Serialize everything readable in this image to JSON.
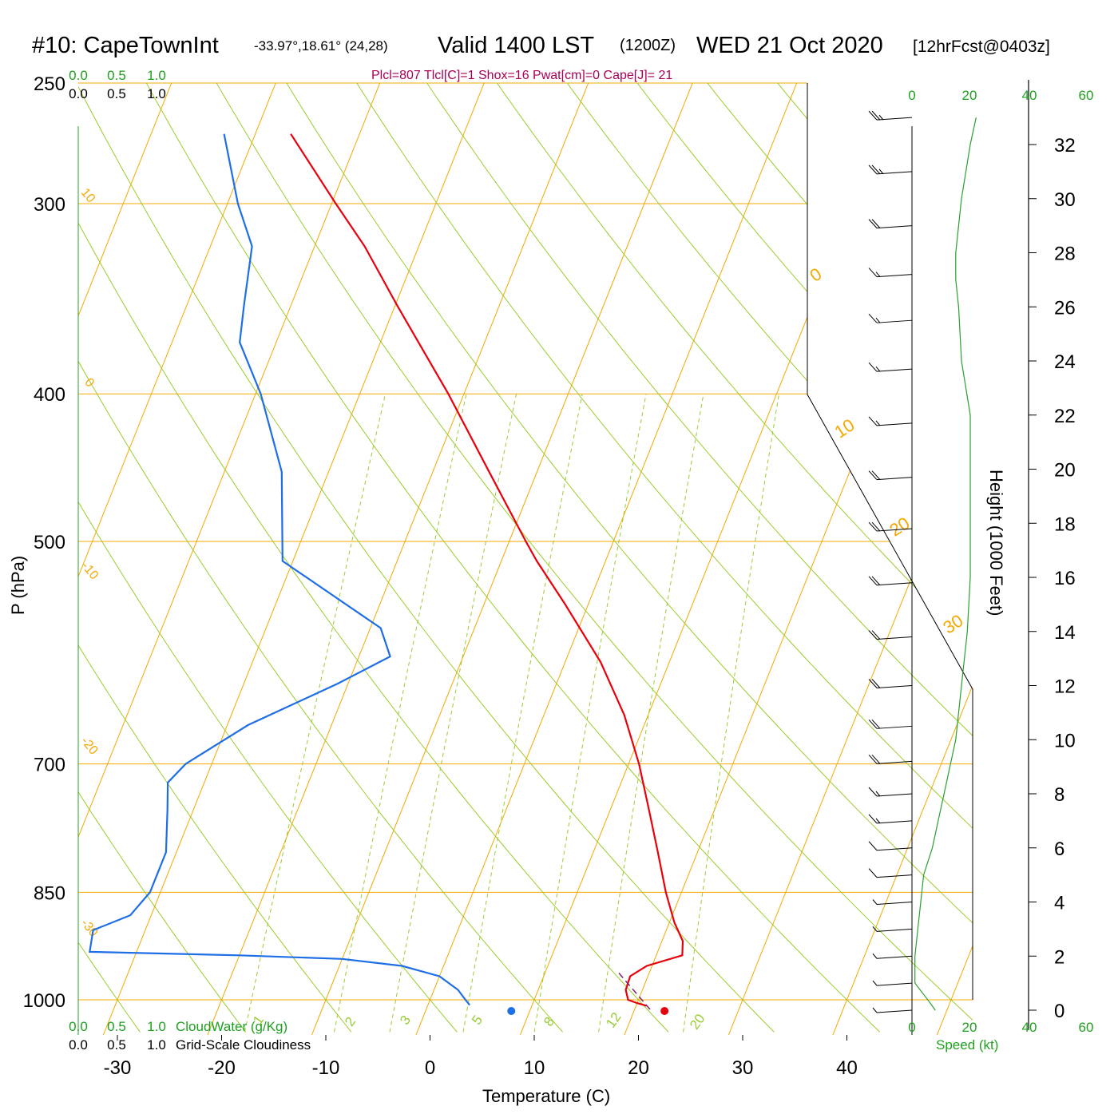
{
  "header": {
    "station": "#10: CapeTownInt",
    "coords": "-33.97°,18.61° (24,28)",
    "valid": "Valid 1400 LST",
    "utc": "(1200Z)",
    "date": "WED 21 Oct 2020",
    "forecast": "[12hrFcst@0403z]"
  },
  "indices": "Plcl=807 Tlcl[C]=1 Shox=16 Pwat[cm]=0 Cape[J]= 21",
  "colors": {
    "isobar": "#f5a800",
    "temperature": "#e8000b",
    "dewpoint": "#1e6ee6",
    "wind_speed": "#2aa02a",
    "parcel": "#7a1f6b",
    "dry_adiabat": "#9ccc2c",
    "mixing_ratio": "#99cc33"
  },
  "chart_data": {
    "type": "skew-t",
    "title": "#10: CapeTownInt Valid 1400 LST (1200Z) WED 21 Oct 2020",
    "xlabel": "Temperature (C)",
    "ylabel": "P (hPa)",
    "right_ylabel": "Height (1000 Feet)",
    "x_ticks": [
      -30,
      -20,
      -10,
      0,
      10,
      20,
      30,
      40
    ],
    "pressure_ticks": [
      250,
      300,
      400,
      500,
      700,
      850,
      1000
    ],
    "height_ticks": [
      0,
      2,
      4,
      6,
      8,
      10,
      12,
      14,
      16,
      18,
      20,
      22,
      24,
      26,
      28,
      30,
      32
    ],
    "speed_ticks_top": [
      0,
      20,
      40,
      60
    ],
    "speed_ticks_bottom": [
      0,
      20,
      40,
      60
    ],
    "speed_label": "Speed (kt)",
    "cloud_ticks": [
      "0.0",
      "0.5",
      "1.0"
    ],
    "cloudwater_label": "CloudWater (g/Kg)",
    "cloudiness_label": "Grid-Scale Cloudiness",
    "isotherm_labels": [
      "0",
      "10",
      "20",
      "30"
    ],
    "isotherm_label_left": [
      "10",
      "0",
      "-10",
      "-20",
      "-30"
    ],
    "mixing_ratio_labels": [
      "1",
      "2",
      "3",
      "5",
      "8",
      "12",
      "20"
    ],
    "temperature_profile": [
      {
        "p": 1009,
        "t": 21.0
      },
      {
        "p": 1005,
        "t": 20.0
      },
      {
        "p": 1000,
        "t": 19.0
      },
      {
        "p": 985,
        "t": 18.4
      },
      {
        "p": 965,
        "t": 18.3
      },
      {
        "p": 950,
        "t": 19.5
      },
      {
        "p": 935,
        "t": 22.5
      },
      {
        "p": 915,
        "t": 22.0
      },
      {
        "p": 890,
        "t": 20.5
      },
      {
        "p": 850,
        "t": 18.5
      },
      {
        "p": 800,
        "t": 16.2
      },
      {
        "p": 750,
        "t": 13.7
      },
      {
        "p": 700,
        "t": 11.0
      },
      {
        "p": 650,
        "t": 7.7
      },
      {
        "p": 600,
        "t": 3.4
      },
      {
        "p": 550,
        "t": -2.2
      },
      {
        "p": 515,
        "t": -6.6
      },
      {
        "p": 500,
        "t": -8.4
      },
      {
        "p": 450,
        "t": -14.6
      },
      {
        "p": 400,
        "t": -21.5
      },
      {
        "p": 350,
        "t": -29.8
      },
      {
        "p": 320,
        "t": -35.2
      },
      {
        "p": 300,
        "t": -39.6
      },
      {
        "p": 270,
        "t": -46.6
      }
    ],
    "dewpoint_profile": [
      {
        "p": 1008,
        "t": 4.0
      },
      {
        "p": 1000,
        "t": 3.4
      },
      {
        "p": 985,
        "t": 2.3
      },
      {
        "p": 965,
        "t": 0.0
      },
      {
        "p": 950,
        "t": -4.0
      },
      {
        "p": 940,
        "t": -10.0
      },
      {
        "p": 935,
        "t": -20.0
      },
      {
        "p": 930,
        "t": -34.5
      },
      {
        "p": 900,
        "t": -35.0
      },
      {
        "p": 880,
        "t": -32.0
      },
      {
        "p": 850,
        "t": -31.0
      },
      {
        "p": 800,
        "t": -31.0
      },
      {
        "p": 750,
        "t": -32.5
      },
      {
        "p": 720,
        "t": -33.5
      },
      {
        "p": 700,
        "t": -32.5
      },
      {
        "p": 660,
        "t": -28.0
      },
      {
        "p": 620,
        "t": -21.0
      },
      {
        "p": 595,
        "t": -17.0
      },
      {
        "p": 570,
        "t": -19.0
      },
      {
        "p": 515,
        "t": -31.0
      },
      {
        "p": 450,
        "t": -34.5
      },
      {
        "p": 400,
        "t": -39.5
      },
      {
        "p": 370,
        "t": -43.5
      },
      {
        "p": 350,
        "t": -44.5
      },
      {
        "p": 320,
        "t": -46.0
      },
      {
        "p": 300,
        "t": -49.0
      },
      {
        "p": 270,
        "t": -53.0
      }
    ],
    "surface_temperature": 22.5,
    "surface_dewpoint": 7.8,
    "wind_speed_profile": [
      {
        "h": 0.0,
        "s": 8
      },
      {
        "h": 0.3,
        "s": 6
      },
      {
        "h": 1.0,
        "s": 1
      },
      {
        "h": 2.0,
        "s": 1
      },
      {
        "h": 3.0,
        "s": 2
      },
      {
        "h": 4.0,
        "s": 3
      },
      {
        "h": 5.0,
        "s": 4
      },
      {
        "h": 6.0,
        "s": 7
      },
      {
        "h": 7.0,
        "s": 9
      },
      {
        "h": 8.0,
        "s": 11
      },
      {
        "h": 9.0,
        "s": 13
      },
      {
        "h": 10.0,
        "s": 15
      },
      {
        "h": 11.0,
        "s": 16
      },
      {
        "h": 12.0,
        "s": 17
      },
      {
        "h": 14.0,
        "s": 19
      },
      {
        "h": 16.0,
        "s": 20
      },
      {
        "h": 18.0,
        "s": 20
      },
      {
        "h": 20.0,
        "s": 20
      },
      {
        "h": 22.0,
        "s": 20
      },
      {
        "h": 24.0,
        "s": 17
      },
      {
        "h": 26.0,
        "s": 16
      },
      {
        "h": 27.0,
        "s": 15
      },
      {
        "h": 28.0,
        "s": 15
      },
      {
        "h": 30.0,
        "s": 17
      },
      {
        "h": 32.0,
        "s": 20
      },
      {
        "h": 33.0,
        "s": 22
      }
    ],
    "wind_barbs": [
      {
        "h": 33.0,
        "s": 25
      },
      {
        "h": 31.0,
        "s": 25
      },
      {
        "h": 29.0,
        "s": 20
      },
      {
        "h": 27.2,
        "s": 15
      },
      {
        "h": 25.5,
        "s": 15
      },
      {
        "h": 23.7,
        "s": 15
      },
      {
        "h": 21.7,
        "s": 15
      },
      {
        "h": 19.7,
        "s": 20
      },
      {
        "h": 17.8,
        "s": 20
      },
      {
        "h": 15.8,
        "s": 20
      },
      {
        "h": 13.8,
        "s": 20
      },
      {
        "h": 12.0,
        "s": 20
      },
      {
        "h": 10.5,
        "s": 20
      },
      {
        "h": 9.2,
        "s": 20
      },
      {
        "h": 8.0,
        "s": 15
      },
      {
        "h": 7.0,
        "s": 15
      },
      {
        "h": 6.0,
        "s": 10
      },
      {
        "h": 5.0,
        "s": 10
      },
      {
        "h": 4.0,
        "s": 5
      },
      {
        "h": 3.0,
        "s": 5
      },
      {
        "h": 2.0,
        "s": 5
      },
      {
        "h": 1.0,
        "s": 5
      },
      {
        "h": 0.0,
        "s": 5
      }
    ]
  }
}
